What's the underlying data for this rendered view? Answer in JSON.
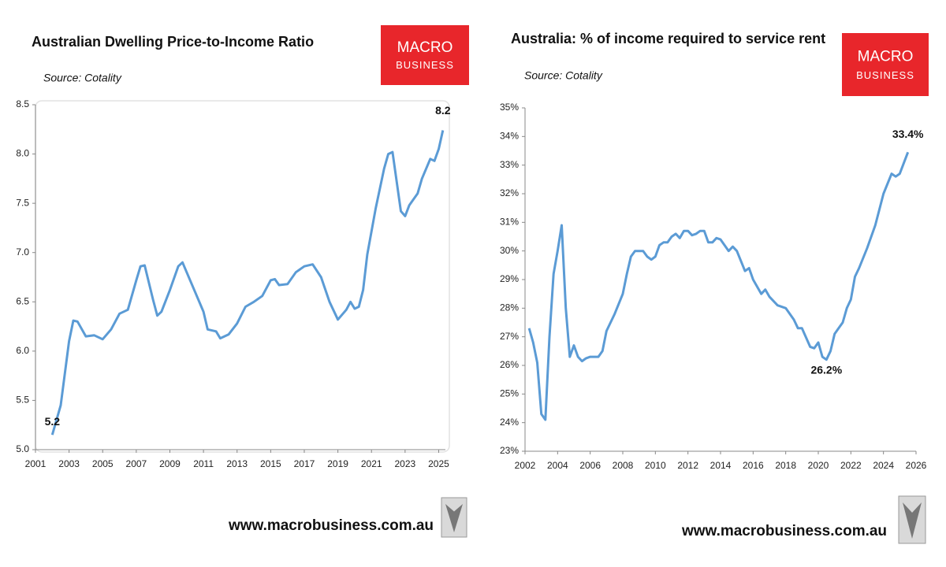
{
  "chart_data": [
    {
      "type": "line",
      "title": "Australian Dwelling Price-to-Income Ratio",
      "source": "Source: Cotality",
      "logo": [
        "MACRO",
        "BUSINESS"
      ],
      "footer": "www.macrobusiness.com.au",
      "color": "#5b9bd5",
      "xlim": [
        2001,
        2025.4
      ],
      "xticks": [
        2001,
        2003,
        2005,
        2007,
        2009,
        2011,
        2013,
        2015,
        2017,
        2019,
        2021,
        2023,
        2025
      ],
      "ylim": [
        5.0,
        8.5
      ],
      "yticks": [
        {
          "value": 5.0,
          "label": "5.0"
        },
        5.5,
        {
          "value": 6.0,
          "label": "6.0"
        },
        6.5,
        {
          "value": 7.0,
          "label": "7.0"
        },
        7.5,
        {
          "value": 8.0,
          "label": "8.0"
        },
        8.5
      ],
      "x": [
        2002.0,
        2002.5,
        2003.0,
        2003.25,
        2003.5,
        2004.0,
        2004.5,
        2005.0,
        2005.5,
        2006.0,
        2006.5,
        2007.0,
        2007.25,
        2007.5,
        2008.0,
        2008.25,
        2008.5,
        2009.0,
        2009.5,
        2009.75,
        2010.0,
        2010.5,
        2011.0,
        2011.25,
        2011.75,
        2012.0,
        2012.5,
        2013.0,
        2013.5,
        2014.0,
        2014.5,
        2015.0,
        2015.25,
        2015.5,
        2016.0,
        2016.5,
        2017.0,
        2017.5,
        2018.0,
        2018.5,
        2019.0,
        2019.5,
        2019.75,
        2020.0,
        2020.25,
        2020.5,
        2020.75,
        2021.25,
        2021.75,
        2022.0,
        2022.25,
        2022.75,
        2023.0,
        2023.25,
        2023.75,
        2024.0,
        2024.5,
        2024.75,
        2025.0,
        2025.25
      ],
      "values": [
        5.15,
        5.45,
        6.1,
        6.31,
        6.3,
        6.15,
        6.16,
        6.12,
        6.22,
        6.38,
        6.42,
        6.72,
        6.86,
        6.87,
        6.52,
        6.36,
        6.4,
        6.62,
        6.86,
        6.9,
        6.8,
        6.6,
        6.4,
        6.22,
        6.2,
        6.13,
        6.17,
        6.28,
        6.45,
        6.5,
        6.56,
        6.72,
        6.73,
        6.67,
        6.68,
        6.8,
        6.86,
        6.88,
        6.75,
        6.5,
        6.32,
        6.42,
        6.5,
        6.43,
        6.45,
        6.62,
        6.98,
        7.45,
        7.85,
        8.0,
        8.02,
        7.42,
        7.37,
        7.48,
        7.6,
        7.75,
        7.95,
        7.93,
        8.05,
        8.24
      ],
      "annotations": [
        {
          "text": "5.2",
          "x": 2002.0,
          "y": 5.15
        },
        {
          "text": "8.2",
          "x": 2025.25,
          "y": 8.24
        }
      ]
    },
    {
      "type": "line",
      "title": "Australia: % of income required to service rent",
      "source": "Source: Cotality",
      "logo": [
        "MACRO",
        "BUSINESS"
      ],
      "footer": "www.macrobusiness.com.au",
      "color": "#5b9bd5",
      "xlim": [
        2002,
        2026
      ],
      "xticks": [
        2002,
        2004,
        2006,
        2008,
        2010,
        2012,
        2014,
        2016,
        2018,
        2020,
        2022,
        2024,
        2026
      ],
      "ylim": [
        23,
        35
      ],
      "yticks": [
        {
          "value": 23,
          "label": "23%"
        },
        {
          "value": 24,
          "label": "24%"
        },
        {
          "value": 25,
          "label": "25%"
        },
        {
          "value": 26,
          "label": "26%"
        },
        {
          "value": 27,
          "label": "27%"
        },
        {
          "value": 28,
          "label": "28%"
        },
        {
          "value": 29,
          "label": "29%"
        },
        {
          "value": 30,
          "label": "30%"
        },
        {
          "value": 31,
          "label": "31%"
        },
        {
          "value": 32,
          "label": "32%"
        },
        {
          "value": 33,
          "label": "33%"
        },
        {
          "value": 34,
          "label": "34%"
        },
        {
          "value": 35,
          "label": "35%"
        }
      ],
      "x": [
        2002.25,
        2002.5,
        2002.75,
        2003.0,
        2003.25,
        2003.5,
        2003.75,
        2004.0,
        2004.25,
        2004.5,
        2004.75,
        2005.0,
        2005.25,
        2005.5,
        2005.75,
        2006.0,
        2006.5,
        2006.75,
        2007.0,
        2007.5,
        2008.0,
        2008.25,
        2008.5,
        2008.75,
        2009.25,
        2009.5,
        2009.75,
        2010.0,
        2010.25,
        2010.5,
        2010.75,
        2011.0,
        2011.25,
        2011.5,
        2011.75,
        2012.0,
        2012.25,
        2012.5,
        2012.75,
        2013.0,
        2013.25,
        2013.5,
        2013.75,
        2014.0,
        2014.5,
        2014.75,
        2015.0,
        2015.5,
        2015.75,
        2016.0,
        2016.5,
        2016.75,
        2017.0,
        2017.5,
        2018.0,
        2018.5,
        2018.75,
        2019.0,
        2019.5,
        2019.75,
        2020.0,
        2020.25,
        2020.5,
        2020.75,
        2021.0,
        2021.25,
        2021.5,
        2021.75,
        2022.0,
        2022.25,
        2022.5,
        2023.0,
        2023.5,
        2024.0,
        2024.5,
        2024.75,
        2025.0,
        2025.5
      ],
      "values": [
        27.3,
        26.8,
        26.1,
        24.3,
        24.1,
        27.0,
        29.2,
        30.0,
        30.9,
        28.0,
        26.3,
        26.7,
        26.3,
        26.15,
        26.25,
        26.3,
        26.3,
        26.5,
        27.2,
        27.8,
        28.5,
        29.2,
        29.8,
        30.0,
        30.0,
        29.8,
        29.7,
        29.8,
        30.2,
        30.3,
        30.3,
        30.5,
        30.6,
        30.45,
        30.7,
        30.7,
        30.55,
        30.6,
        30.7,
        30.7,
        30.3,
        30.3,
        30.45,
        30.4,
        30.0,
        30.15,
        30.0,
        29.3,
        29.4,
        29.0,
        28.5,
        28.65,
        28.4,
        28.1,
        28.0,
        27.6,
        27.3,
        27.3,
        26.65,
        26.6,
        26.8,
        26.3,
        26.2,
        26.5,
        27.1,
        27.3,
        27.5,
        28.0,
        28.3,
        29.1,
        29.4,
        30.1,
        30.9,
        32.0,
        32.7,
        32.6,
        32.7,
        33.45
      ],
      "annotations": [
        {
          "text": "26.2%",
          "x": 2020.5,
          "y": 26.2
        },
        {
          "text": "33.4%",
          "x": 2025.5,
          "y": 33.4
        }
      ]
    }
  ]
}
